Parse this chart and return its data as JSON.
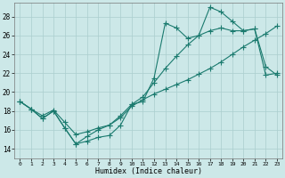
{
  "xlabel": "Humidex (Indice chaleur)",
  "bg_color": "#cce8e8",
  "line_color": "#1a7a6e",
  "grid_color": "#aacece",
  "xlim": [
    -0.5,
    23.5
  ],
  "ylim": [
    13.0,
    29.5
  ],
  "yticks": [
    14,
    16,
    18,
    20,
    22,
    24,
    26,
    28
  ],
  "xticks": [
    0,
    1,
    2,
    3,
    4,
    5,
    6,
    7,
    8,
    9,
    10,
    11,
    12,
    13,
    14,
    15,
    16,
    17,
    18,
    19,
    20,
    21,
    22,
    23
  ],
  "line1_x": [
    0,
    1,
    2,
    3,
    4,
    5,
    6,
    7,
    8,
    9,
    10,
    11,
    12,
    13,
    14,
    15,
    16,
    17,
    18,
    19,
    20,
    21,
    22,
    23
  ],
  "line1_y": [
    19.0,
    18.2,
    17.2,
    18.0,
    16.2,
    14.5,
    14.8,
    15.2,
    15.4,
    16.5,
    18.7,
    19.0,
    21.5,
    27.3,
    26.8,
    25.7,
    26.0,
    29.0,
    28.5,
    27.5,
    26.5,
    26.7,
    22.7,
    21.8
  ],
  "line2_x": [
    0,
    1,
    2,
    3,
    4,
    5,
    6,
    7,
    8,
    9,
    10,
    11,
    12,
    13,
    14,
    15,
    16,
    17,
    18,
    19,
    20,
    21,
    22,
    23
  ],
  "line2_y": [
    19.0,
    18.2,
    17.5,
    18.1,
    16.8,
    15.5,
    15.8,
    16.2,
    16.5,
    17.3,
    18.5,
    19.2,
    19.8,
    20.3,
    20.8,
    21.3,
    21.9,
    22.5,
    23.2,
    24.0,
    24.8,
    25.5,
    26.2,
    27.0
  ],
  "line3_x": [
    0,
    1,
    2,
    3,
    4,
    5,
    6,
    7,
    8,
    9,
    10,
    11,
    12,
    13,
    14,
    15,
    16,
    17,
    18,
    19,
    20,
    21,
    22,
    23
  ],
  "line3_y": [
    19.0,
    18.2,
    17.2,
    18.0,
    16.2,
    14.5,
    15.3,
    16.0,
    16.5,
    17.5,
    18.7,
    19.5,
    21.0,
    22.5,
    23.8,
    25.0,
    26.0,
    26.5,
    26.8,
    26.5,
    26.5,
    26.7,
    21.8,
    22.0
  ]
}
